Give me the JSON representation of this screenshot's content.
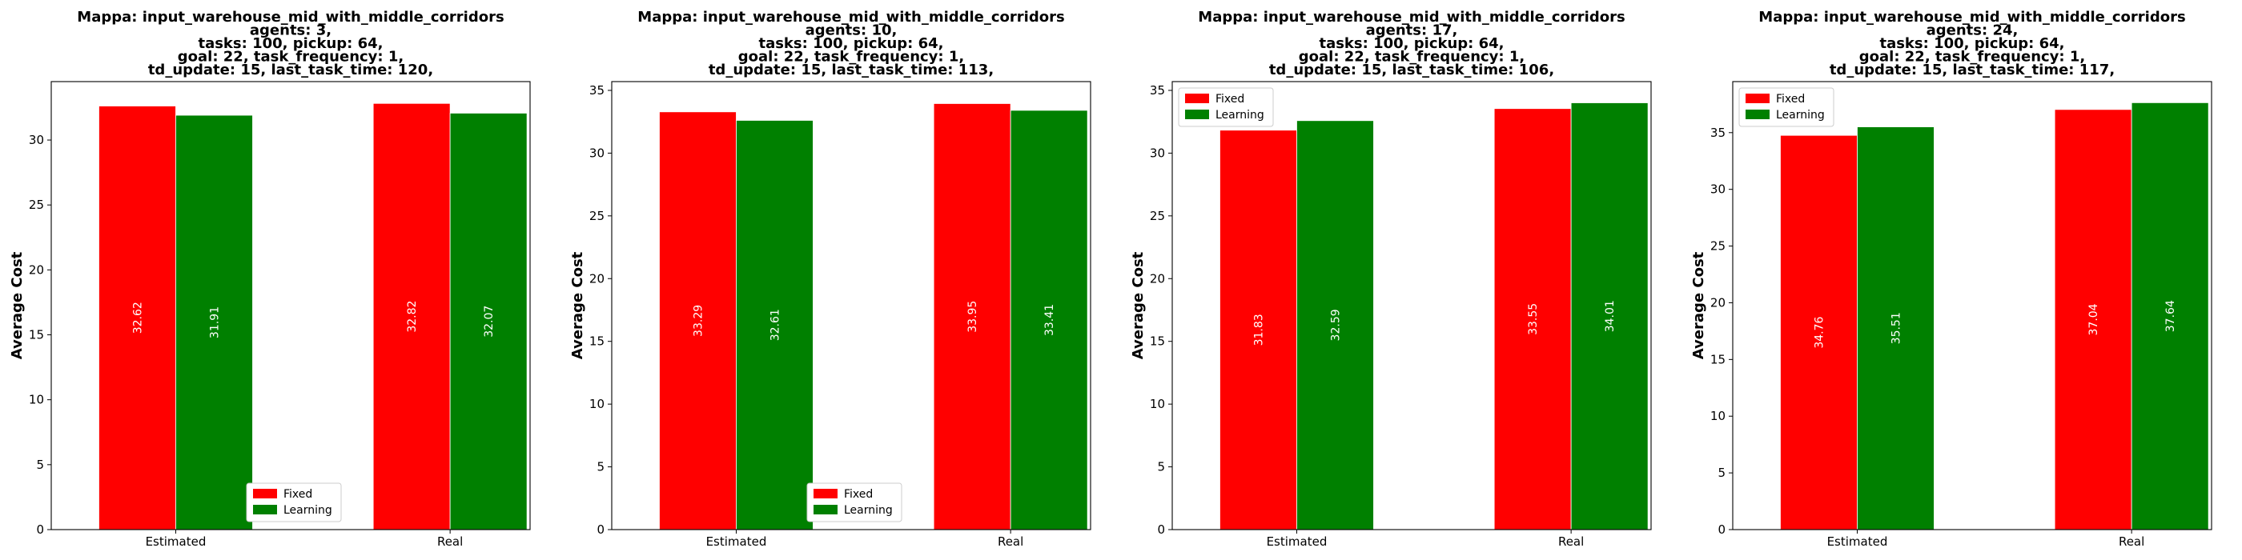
{
  "colors": {
    "fixed": "#ff0000",
    "learning": "#008000"
  },
  "chart_data": [
    {
      "type": "bar",
      "title_lines": [
        "Mappa: input_warehouse_mid_with_middle_corridors",
        "agents: 3,",
        "tasks: 100, pickup: 64,",
        "goal: 22, task_frequency: 1,",
        "td_update: 15, last_task_time: 120,"
      ],
      "ylabel": "Average Cost",
      "categories": [
        "Estimated",
        "Real"
      ],
      "series": [
        {
          "name": "Fixed",
          "color": "#ff0000",
          "values": [
            32.62,
            32.82
          ],
          "labels": [
            "32.62",
            "32.82"
          ]
        },
        {
          "name": "Learning",
          "color": "#008000",
          "values": [
            31.91,
            32.07
          ],
          "labels": [
            "31.91",
            "32.07"
          ]
        }
      ],
      "yticks": [
        0,
        5,
        10,
        15,
        20,
        25,
        30
      ],
      "ylim": [
        0,
        34.5
      ],
      "legend_position": "lower center"
    },
    {
      "type": "bar",
      "title_lines": [
        "Mappa: input_warehouse_mid_with_middle_corridors",
        "agents: 10,",
        "tasks: 100, pickup: 64,",
        "goal: 22, task_frequency: 1,",
        "td_update: 15, last_task_time: 113,"
      ],
      "ylabel": "Average Cost",
      "categories": [
        "Estimated",
        "Real"
      ],
      "series": [
        {
          "name": "Fixed",
          "color": "#ff0000",
          "values": [
            33.29,
            33.95
          ],
          "labels": [
            "33.29",
            "33.95"
          ]
        },
        {
          "name": "Learning",
          "color": "#008000",
          "values": [
            32.61,
            33.41
          ],
          "labels": [
            "32.61",
            "33.41"
          ]
        }
      ],
      "yticks": [
        0,
        5,
        10,
        15,
        20,
        25,
        30,
        35
      ],
      "ylim": [
        0,
        35.7
      ],
      "legend_position": "lower center"
    },
    {
      "type": "bar",
      "title_lines": [
        "Mappa: input_warehouse_mid_with_middle_corridors",
        "agents: 17,",
        "tasks: 100, pickup: 64,",
        "goal: 22, task_frequency: 1,",
        "td_update: 15, last_task_time: 106,"
      ],
      "ylabel": "Average Cost",
      "categories": [
        "Estimated",
        "Real"
      ],
      "series": [
        {
          "name": "Fixed",
          "color": "#ff0000",
          "values": [
            31.83,
            33.55
          ],
          "labels": [
            "31.83",
            "33.55"
          ]
        },
        {
          "name": "Learning",
          "color": "#008000",
          "values": [
            32.59,
            34.01
          ],
          "labels": [
            "32.59",
            "34.01"
          ]
        }
      ],
      "yticks": [
        0,
        5,
        10,
        15,
        20,
        25,
        30,
        35
      ],
      "ylim": [
        0,
        35.7
      ],
      "legend_position": "upper left"
    },
    {
      "type": "bar",
      "title_lines": [
        "Mappa: input_warehouse_mid_with_middle_corridors",
        "agents: 24,",
        "tasks: 100, pickup: 64,",
        "goal: 22, task_frequency: 1,",
        "td_update: 15, last_task_time: 117,"
      ],
      "ylabel": "Average Cost",
      "categories": [
        "Estimated",
        "Real"
      ],
      "series": [
        {
          "name": "Fixed",
          "color": "#ff0000",
          "values": [
            34.76,
            37.04
          ],
          "labels": [
            "34.76",
            "37.04"
          ]
        },
        {
          "name": "Learning",
          "color": "#008000",
          "values": [
            35.51,
            37.64
          ],
          "labels": [
            "35.51",
            "37.64"
          ]
        }
      ],
      "yticks": [
        0,
        5,
        10,
        15,
        20,
        25,
        30,
        35
      ],
      "ylim": [
        0,
        39.5
      ],
      "legend_position": "upper left"
    }
  ]
}
